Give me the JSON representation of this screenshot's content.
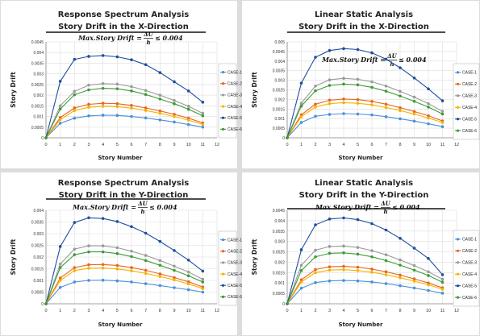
{
  "chart_data": [
    {
      "type": "line",
      "title": [
        "Response Spectrum Analysis",
        "Story Drift  in the X-Direction"
      ],
      "xlabel": "Story Number",
      "ylabel": "Story  Drift",
      "xlim": [
        0,
        12
      ],
      "ylim": [
        0,
        0.0045
      ],
      "y_step": 0.0005,
      "legend_position": "right",
      "annotation": "Max.Story Drift = ΔU/h ≤ 0.004",
      "limit_line": 0.004,
      "x": [
        0,
        1,
        2,
        3,
        4,
        5,
        6,
        7,
        8,
        9,
        10,
        11
      ],
      "series": [
        {
          "name": "CASE-1",
          "color": "#4a90d9",
          "values": [
            0,
            0.00068,
            0.00092,
            0.00103,
            0.00106,
            0.00105,
            0.001,
            0.00093,
            0.00084,
            0.00074,
            0.00062,
            0.0005
          ]
        },
        {
          "name": "CASE-2",
          "color": "#e8651f",
          "values": [
            0,
            0.00095,
            0.0014,
            0.00157,
            0.00162,
            0.0016,
            0.00152,
            0.0014,
            0.00126,
            0.0011,
            0.00092,
            0.0007
          ]
        },
        {
          "name": "CASE-3",
          "color": "#9b9b9b",
          "values": [
            0,
            0.0015,
            0.00218,
            0.00247,
            0.00254,
            0.00252,
            0.0024,
            0.00222,
            0.002,
            0.00175,
            0.00148,
            0.00115
          ]
        },
        {
          "name": "CASE-4",
          "color": "#f5b300",
          "values": [
            0,
            0.00085,
            0.00128,
            0.00143,
            0.00148,
            0.00146,
            0.00139,
            0.00128,
            0.00115,
            0.001,
            0.00083,
            0.00063
          ]
        },
        {
          "name": "CASE-5",
          "color": "#1f4e9e",
          "values": [
            0,
            0.00265,
            0.00368,
            0.00382,
            0.00386,
            0.0038,
            0.00366,
            0.00343,
            0.00306,
            0.00263,
            0.0022,
            0.00167
          ]
        },
        {
          "name": "CASE-6",
          "color": "#3e9b35",
          "values": [
            0,
            0.00135,
            0.00202,
            0.00225,
            0.00232,
            0.0023,
            0.0022,
            0.00203,
            0.00182,
            0.0016,
            0.00134,
            0.00103
          ]
        }
      ]
    },
    {
      "type": "line",
      "title": [
        "Linear Static Analysis",
        "Story Drift  in the X-Direction"
      ],
      "xlabel": "Story Number",
      "ylabel": "Story  Drift",
      "xlim": [
        0,
        12
      ],
      "ylim": [
        0,
        0.005
      ],
      "y_step": 0.0005,
      "legend_position": "right",
      "annotation": "Max.Story Drift = ΔU/h ≤ 0.004",
      "limit_line": 0.004,
      "x": [
        0,
        1,
        2,
        3,
        4,
        5,
        6,
        7,
        8,
        9,
        10,
        11
      ],
      "series": [
        {
          "name": "CASE-1",
          "color": "#4a90d9",
          "values": [
            0,
            0.0008,
            0.00112,
            0.00122,
            0.00126,
            0.00124,
            0.00119,
            0.0011,
            0.00099,
            0.00087,
            0.00073,
            0.00058
          ]
        },
        {
          "name": "CASE-2",
          "color": "#e8651f",
          "values": [
            0,
            0.0012,
            0.00175,
            0.00196,
            0.00202,
            0.00199,
            0.0019,
            0.00175,
            0.00157,
            0.00137,
            0.00115,
            0.00088
          ]
        },
        {
          "name": "CASE-3",
          "color": "#9b9b9b",
          "values": [
            0,
            0.0018,
            0.0027,
            0.00302,
            0.0031,
            0.00305,
            0.00292,
            0.0027,
            0.00242,
            0.00212,
            0.00178,
            0.00138
          ]
        },
        {
          "name": "CASE-4",
          "color": "#f5b300",
          "values": [
            0,
            0.0011,
            0.0016,
            0.00178,
            0.00183,
            0.0018,
            0.00172,
            0.00158,
            0.00142,
            0.00124,
            0.00103,
            0.0008
          ]
        },
        {
          "name": "CASE-5",
          "color": "#1f4e9e",
          "values": [
            0,
            0.00285,
            0.0042,
            0.00455,
            0.00465,
            0.0046,
            0.00443,
            0.0041,
            0.00365,
            0.00312,
            0.00255,
            0.00193
          ]
        },
        {
          "name": "CASE-6",
          "color": "#3e9b35",
          "values": [
            0,
            0.00165,
            0.00245,
            0.00273,
            0.0028,
            0.00276,
            0.00263,
            0.00243,
            0.00218,
            0.0019,
            0.0016,
            0.00124
          ]
        }
      ]
    },
    {
      "type": "line",
      "title": [
        "Response Spectrum Analysis",
        "Story Drift  in the Y-Direction"
      ],
      "xlabel": "Story Number",
      "ylabel": "Story  Drift",
      "xlim": [
        0,
        12
      ],
      "ylim": [
        0,
        0.004
      ],
      "y_step": 0.0005,
      "legend_position": "right",
      "annotation": "Max.Story Drift = ΔU/h ≤ 0.004",
      "limit_line": 0.004,
      "x": [
        0,
        1,
        2,
        3,
        4,
        5,
        6,
        7,
        8,
        9,
        10,
        11
      ],
      "series": [
        {
          "name": "CASE-1",
          "color": "#4a90d9",
          "values": [
            0,
            0.0007,
            0.00093,
            0.001,
            0.00101,
            0.00098,
            0.00093,
            0.00086,
            0.00078,
            0.00069,
            0.0006,
            0.0005
          ]
        },
        {
          "name": "CASE-2",
          "color": "#e8651f",
          "values": [
            0,
            0.0011,
            0.00155,
            0.00167,
            0.00168,
            0.00164,
            0.00155,
            0.00143,
            0.00128,
            0.00112,
            0.00094,
            0.00072
          ]
        },
        {
          "name": "CASE-3",
          "color": "#9b9b9b",
          "values": [
            0,
            0.0017,
            0.00234,
            0.00248,
            0.00248,
            0.0024,
            0.00225,
            0.00207,
            0.00185,
            0.00161,
            0.00136,
            0.00105
          ]
        },
        {
          "name": "CASE-4",
          "color": "#f5b300",
          "values": [
            0,
            0.001,
            0.00142,
            0.00152,
            0.00153,
            0.00149,
            0.00141,
            0.0013,
            0.00117,
            0.00102,
            0.00085,
            0.00065
          ]
        },
        {
          "name": "CASE-5",
          "color": "#1f4e9e",
          "values": [
            0,
            0.00245,
            0.00348,
            0.00368,
            0.00365,
            0.00352,
            0.0033,
            0.00302,
            0.00267,
            0.00228,
            0.00187,
            0.0014
          ]
        },
        {
          "name": "CASE-6",
          "color": "#3e9b35",
          "values": [
            0,
            0.00155,
            0.0021,
            0.00222,
            0.00222,
            0.00215,
            0.00202,
            0.00185,
            0.00165,
            0.00143,
            0.0012,
            0.00093
          ]
        }
      ]
    },
    {
      "type": "line",
      "title": [
        "Linear Static Analysis",
        "Story Drift  in the Y-Direction"
      ],
      "xlabel": "Story Number",
      "ylabel": "Story  Drift",
      "xlim": [
        0,
        12
      ],
      "ylim": [
        0,
        0.0045
      ],
      "y_step": 0.0005,
      "legend_position": "right",
      "annotation": "Max.Story Drift = ΔU/h ≤ 0.004",
      "limit_line": 0.004,
      "x": [
        0,
        1,
        2,
        3,
        4,
        5,
        6,
        7,
        8,
        9,
        10,
        11
      ],
      "series": [
        {
          "name": "CASE-1",
          "color": "#4a90d9",
          "values": [
            0,
            0.00075,
            0.00102,
            0.0011,
            0.00112,
            0.0011,
            0.00105,
            0.00097,
            0.00087,
            0.00076,
            0.00064,
            0.00051
          ]
        },
        {
          "name": "CASE-2",
          "color": "#e8651f",
          "values": [
            0,
            0.00115,
            0.00165,
            0.00178,
            0.0018,
            0.00176,
            0.00167,
            0.00154,
            0.00138,
            0.0012,
            0.001,
            0.00077
          ]
        },
        {
          "name": "CASE-3",
          "color": "#9b9b9b",
          "values": [
            0,
            0.00185,
            0.00258,
            0.00276,
            0.00278,
            0.00271,
            0.00256,
            0.00236,
            0.00211,
            0.00184,
            0.00154,
            0.00118
          ]
        },
        {
          "name": "CASE-4",
          "color": "#f5b300",
          "values": [
            0,
            0.00105,
            0.0015,
            0.00162,
            0.00164,
            0.0016,
            0.00152,
            0.0014,
            0.00125,
            0.00109,
            0.00091,
            0.0007
          ]
        },
        {
          "name": "CASE-5",
          "color": "#1f4e9e",
          "values": [
            0,
            0.0026,
            0.0038,
            0.00408,
            0.00413,
            0.00405,
            0.00386,
            0.00355,
            0.00315,
            0.00268,
            0.00218,
            0.0014
          ]
        },
        {
          "name": "CASE-6",
          "color": "#3e9b35",
          "values": [
            0,
            0.0016,
            0.00226,
            0.00243,
            0.00245,
            0.00239,
            0.00226,
            0.00208,
            0.00186,
            0.00162,
            0.00136,
            0.00104
          ]
        }
      ]
    }
  ]
}
